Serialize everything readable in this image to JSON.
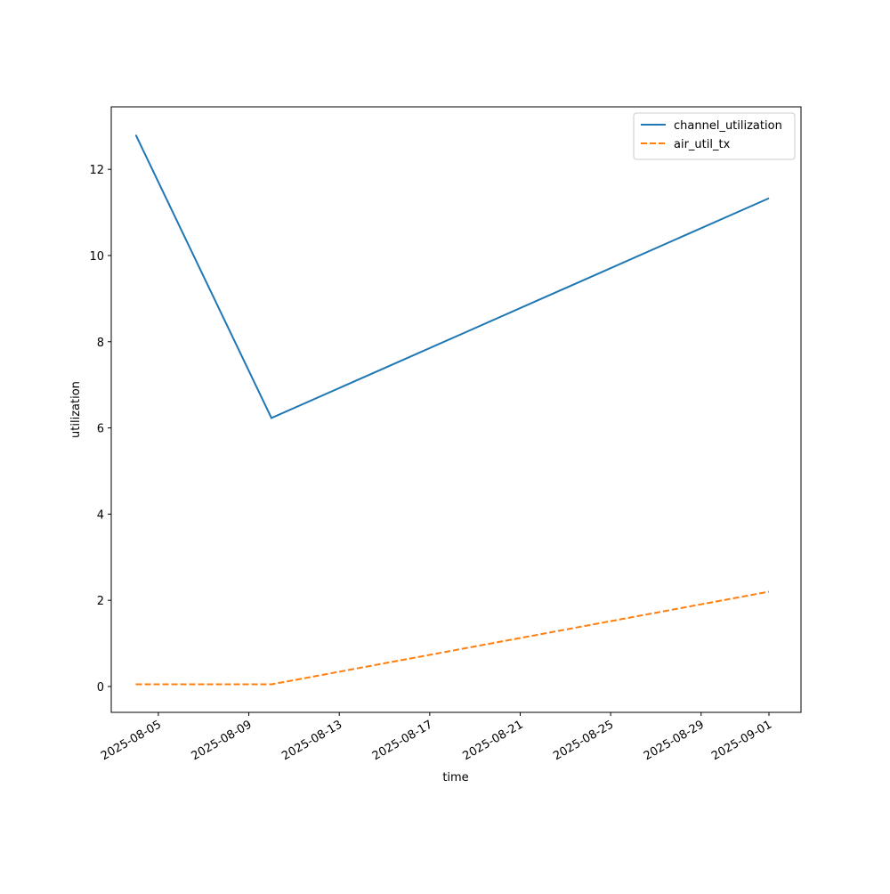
{
  "chart_data": {
    "type": "line",
    "xlabel": "time",
    "ylabel": "utilization",
    "x": [
      "2025-08-04",
      "2025-08-10",
      "2025-09-01"
    ],
    "series": [
      {
        "name": "channel_utilization",
        "color": "#1f77b4",
        "dash": "solid",
        "values": [
          12.8,
          6.23,
          11.33
        ]
      },
      {
        "name": "air_util_tx",
        "color": "#ff7f0e",
        "dash": "dashed",
        "values": [
          0.05,
          0.05,
          2.2
        ]
      }
    ],
    "xlim": [
      "2025-08-02T22:00",
      "2025-09-02T10:00"
    ],
    "xticks": [
      "2025-08-05",
      "2025-08-09",
      "2025-08-13",
      "2025-08-17",
      "2025-08-21",
      "2025-08-25",
      "2025-08-29",
      "2025-09-01"
    ],
    "ylim": [
      -0.6,
      13.45
    ],
    "yticks": [
      0,
      2,
      4,
      6,
      8,
      10,
      12
    ],
    "legend": "upper right"
  }
}
